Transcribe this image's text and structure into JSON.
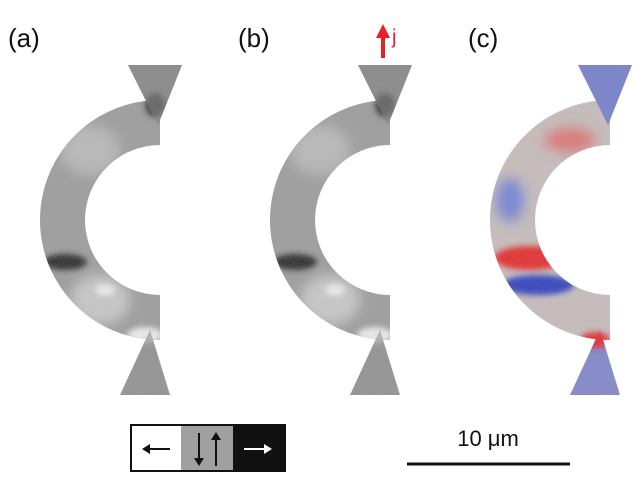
{
  "panels": [
    {
      "label": "(a)"
    },
    {
      "label": "(b)"
    },
    {
      "label": "(c)"
    }
  ],
  "current_label": "j",
  "scale_bar": "10 μm"
}
